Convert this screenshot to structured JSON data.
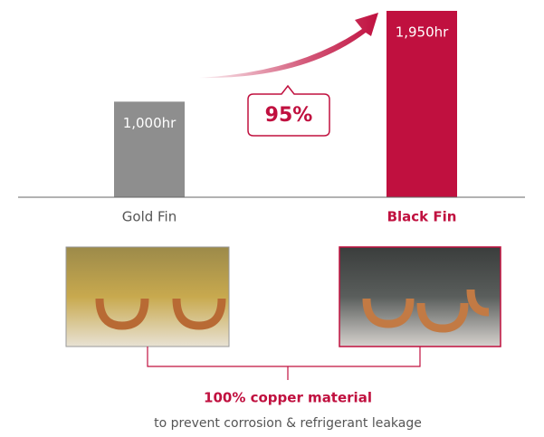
{
  "chart_data": {
    "type": "bar",
    "categories": [
      "Gold Fin",
      "Black Fin"
    ],
    "values": [
      1000,
      1950
    ],
    "value_labels": [
      "1,000hr",
      "1,950hr"
    ],
    "colors": [
      "#8e8e8e",
      "#c0103f"
    ],
    "annotation": "95%",
    "caption_title": "100% copper material",
    "caption_text": "to prevent corrosion & refrigerant leakage"
  }
}
